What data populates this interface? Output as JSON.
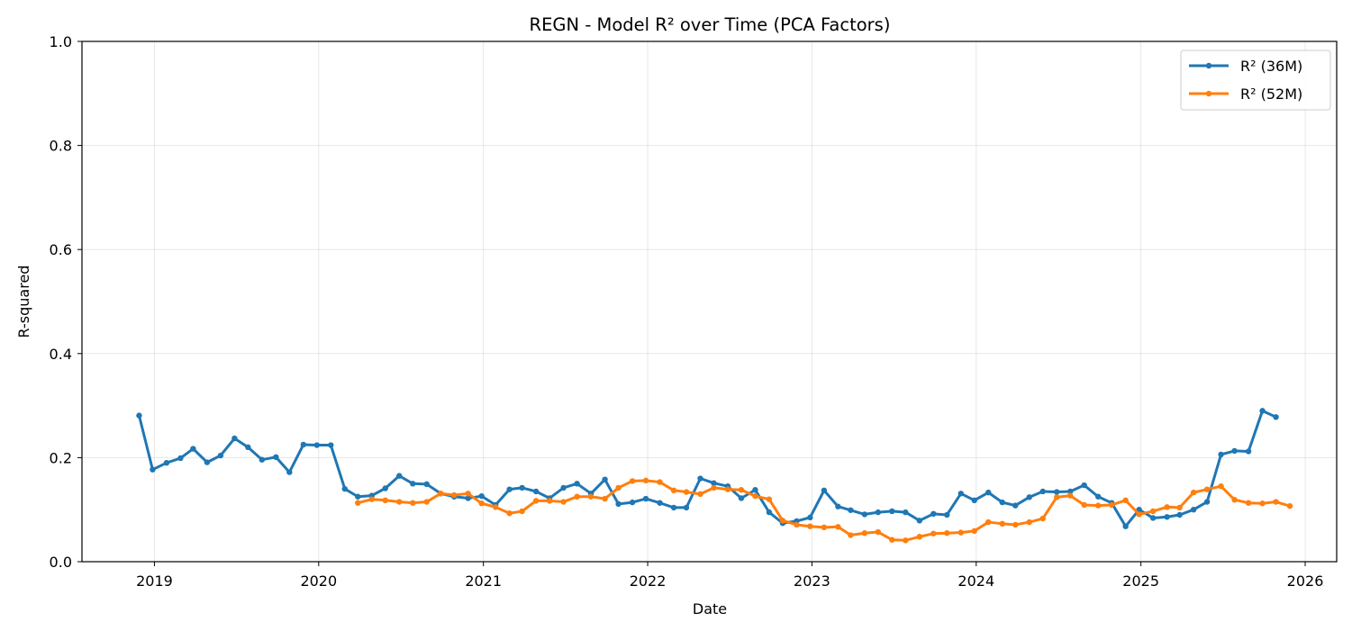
{
  "chart_data": {
    "type": "line",
    "title": "REGN - Model R² over Time (PCA Factors)",
    "xlabel": "Date",
    "ylabel": "R-squared",
    "x_type": "date",
    "xlim": [
      "2018-07-24",
      "2026-03-12"
    ],
    "ylim": [
      0,
      1
    ],
    "x_ticks": [
      "2019",
      "2020",
      "2021",
      "2022",
      "2023",
      "2024",
      "2025",
      "2026"
    ],
    "y_ticks": [
      "0.0",
      "0.2",
      "0.4",
      "0.6",
      "0.8",
      "1.0"
    ],
    "grid": true,
    "legend_position": "top-right",
    "series": [
      {
        "name": "R² (36M)",
        "color": "#1f77b4",
        "start": "2018-11",
        "values": [
          0.281,
          0.177,
          0.19,
          0.199,
          0.217,
          0.191,
          0.204,
          0.237,
          0.22,
          0.196,
          0.201,
          0.172,
          0.225,
          0.224,
          0.224,
          0.14,
          0.125,
          0.127,
          0.141,
          0.165,
          0.15,
          0.149,
          0.131,
          0.125,
          0.122,
          0.126,
          0.109,
          0.139,
          0.142,
          0.135,
          0.122,
          0.142,
          0.15,
          0.131,
          0.158,
          0.111,
          0.114,
          0.121,
          0.113,
          0.104,
          0.104,
          0.16,
          0.151,
          0.145,
          0.122,
          0.138,
          0.095,
          0.074,
          0.078,
          0.085,
          0.137,
          0.106,
          0.099,
          0.091,
          0.095,
          0.097,
          0.095,
          0.079,
          0.092,
          0.09,
          0.131,
          0.118,
          0.133,
          0.114,
          0.108,
          0.124,
          0.135,
          0.134,
          0.135,
          0.147,
          0.125,
          0.113,
          0.068,
          0.1,
          0.084,
          0.086,
          0.09,
          0.1,
          0.115,
          0.206,
          0.213,
          0.212,
          0.29,
          0.278
        ]
      },
      {
        "name": "R² (52M)",
        "color": "#ff7f0e",
        "start": "2020-03",
        "values": [
          0.113,
          0.12,
          0.118,
          0.115,
          0.113,
          0.115,
          0.131,
          0.128,
          0.131,
          0.112,
          0.105,
          0.093,
          0.097,
          0.117,
          0.117,
          0.115,
          0.125,
          0.125,
          0.121,
          0.142,
          0.155,
          0.156,
          0.153,
          0.137,
          0.134,
          0.13,
          0.142,
          0.139,
          0.138,
          0.126,
          0.12,
          0.079,
          0.071,
          0.068,
          0.066,
          0.067,
          0.051,
          0.055,
          0.057,
          0.042,
          0.041,
          0.048,
          0.054,
          0.055,
          0.056,
          0.059,
          0.076,
          0.073,
          0.071,
          0.076,
          0.083,
          0.124,
          0.127,
          0.109,
          0.108,
          0.109,
          0.118,
          0.091,
          0.097,
          0.105,
          0.104,
          0.133,
          0.139,
          0.145,
          0.119,
          0.113,
          0.112,
          0.115,
          0.107
        ]
      }
    ]
  }
}
